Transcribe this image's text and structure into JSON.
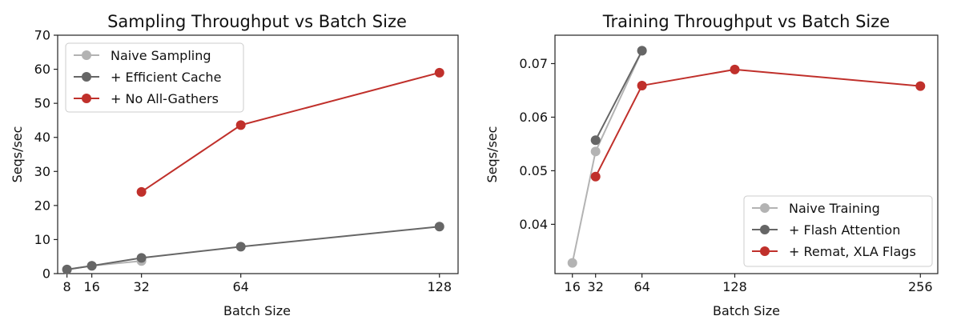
{
  "chart_data": [
    {
      "type": "line",
      "title": "Sampling Throughput vs Batch Size",
      "xlabel": "Batch Size",
      "ylabel": "Seqs/sec",
      "xlim": [
        5,
        134
      ],
      "ylim": [
        0,
        70
      ],
      "xticks": [
        8,
        16,
        32,
        64,
        128
      ],
      "yticks": [
        0,
        10,
        20,
        30,
        40,
        50,
        60,
        70
      ],
      "legend_position": "top-left",
      "series": [
        {
          "name": "Naive Sampling",
          "color": "#b3b3b3",
          "x": [
            8,
            16,
            32
          ],
          "y": [
            1.2,
            2.3,
            3.7
          ]
        },
        {
          "name": "+ Efficient Cache",
          "color": "#666666",
          "x": [
            8,
            16,
            32,
            64,
            128
          ],
          "y": [
            1.2,
            2.3,
            4.6,
            7.9,
            13.8
          ]
        },
        {
          "name": "+ No All-Gathers",
          "color": "#c0302b",
          "x": [
            32,
            64,
            128
          ],
          "y": [
            24.0,
            43.6,
            59.0
          ]
        }
      ]
    },
    {
      "type": "line",
      "title": "Training Throughput vs Batch Size",
      "xlabel": "Batch Size",
      "ylabel": "Seqs/sec",
      "xlim": [
        4,
        268
      ],
      "ylim": [
        0.0308,
        0.0753
      ],
      "xticks": [
        16,
        32,
        64,
        128,
        256
      ],
      "yticks": [
        0.04,
        0.05,
        0.06,
        0.07
      ],
      "legend_position": "bottom-right",
      "series": [
        {
          "name": "Naive Training",
          "color": "#b3b3b3",
          "x": [
            16,
            32,
            64
          ],
          "y": [
            0.0328,
            0.0536,
            0.0724
          ]
        },
        {
          "name": "+ Flash Attention",
          "color": "#666666",
          "x": [
            32,
            64
          ],
          "y": [
            0.0557,
            0.0724
          ]
        },
        {
          "name": "+ Remat, XLA Flags",
          "color": "#c0302b",
          "x": [
            32,
            64,
            128,
            256
          ],
          "y": [
            0.0489,
            0.0659,
            0.0689,
            0.0658
          ]
        }
      ]
    }
  ]
}
